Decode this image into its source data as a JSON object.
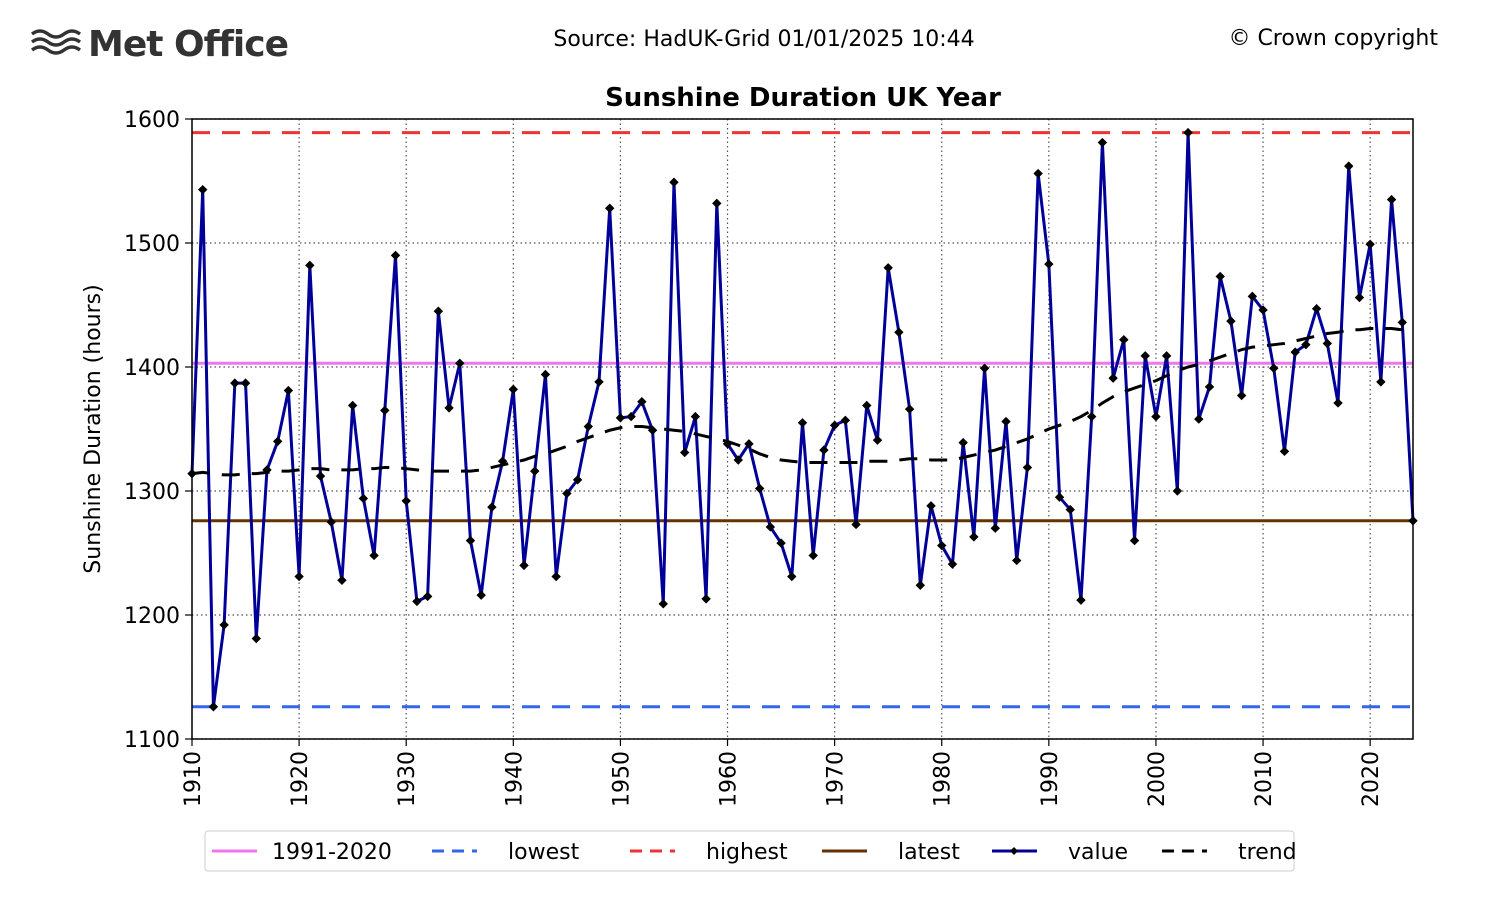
{
  "header": {
    "logo": "Met Office",
    "source": "Source: HadUK-Grid 01/01/2025 10:44",
    "copyright": "© Crown copyright"
  },
  "chart_data": {
    "type": "line",
    "title": "Sunshine Duration UK Year",
    "y_label": "Sunshine Duration (hours)",
    "xlim": [
      1910,
      2024
    ],
    "ylim": [
      1100,
      1600
    ],
    "xticks": [
      1910,
      1920,
      1930,
      1940,
      1950,
      1960,
      1970,
      1980,
      1990,
      2000,
      2010,
      2020
    ],
    "yticks": [
      1100,
      1200,
      1300,
      1400,
      1500,
      1600
    ],
    "grid": true,
    "legend": "bottom",
    "x": [
      1910,
      1911,
      1912,
      1913,
      1914,
      1915,
      1916,
      1917,
      1918,
      1919,
      1920,
      1921,
      1922,
      1923,
      1924,
      1925,
      1926,
      1927,
      1928,
      1929,
      1930,
      1931,
      1932,
      1933,
      1934,
      1935,
      1936,
      1937,
      1938,
      1939,
      1940,
      1941,
      1942,
      1943,
      1944,
      1945,
      1946,
      1947,
      1948,
      1949,
      1950,
      1951,
      1952,
      1953,
      1954,
      1955,
      1956,
      1957,
      1958,
      1959,
      1960,
      1961,
      1962,
      1963,
      1964,
      1965,
      1966,
      1967,
      1968,
      1969,
      1970,
      1971,
      1972,
      1973,
      1974,
      1975,
      1976,
      1977,
      1978,
      1979,
      1980,
      1981,
      1982,
      1983,
      1984,
      1985,
      1986,
      1987,
      1988,
      1989,
      1990,
      1991,
      1992,
      1993,
      1994,
      1995,
      1996,
      1997,
      1998,
      1999,
      2000,
      2001,
      2002,
      2003,
      2004,
      2005,
      2006,
      2007,
      2008,
      2009,
      2010,
      2011,
      2012,
      2013,
      2014,
      2015,
      2016,
      2017,
      2018,
      2019,
      2020,
      2021,
      2022,
      2023,
      2024
    ],
    "series": [
      {
        "name": "1991-2020",
        "color": "#ee77ee",
        "value": 1403,
        "dash": "solid"
      },
      {
        "name": "lowest",
        "color": "#3366ee",
        "value": 1126,
        "dash": "dashed"
      },
      {
        "name": "highest",
        "color": "#ee3333",
        "value": 1589,
        "dash": "dashed"
      },
      {
        "name": "latest",
        "color": "#663300",
        "value": 1276,
        "dash": "solid"
      },
      {
        "name": "value",
        "color": "#000099",
        "dash": "solid",
        "marker": "diamond",
        "values": [
          1314,
          1543,
          1126,
          1192,
          1387,
          1387,
          1181,
          1317,
          1340,
          1381,
          1231,
          1482,
          1312,
          1275,
          1228,
          1369,
          1294,
          1248,
          1365,
          1490,
          1292,
          1211,
          1215,
          1445,
          1367,
          1403,
          1260,
          1216,
          1287,
          1324,
          1382,
          1240,
          1316,
          1394,
          1231,
          1298,
          1309,
          1352,
          1388,
          1528,
          1359,
          1360,
          1372,
          1349,
          1209,
          1549,
          1331,
          1360,
          1213,
          1532,
          1338,
          1325,
          1338,
          1302,
          1271,
          1258,
          1231,
          1355,
          1248,
          1333,
          1353,
          1357,
          1273,
          1369,
          1341,
          1480,
          1428,
          1366,
          1224,
          1288,
          1256,
          1241,
          1339,
          1263,
          1399,
          1270,
          1356,
          1244,
          1319,
          1556,
          1483,
          1295,
          1285,
          1212,
          1360,
          1581,
          1391,
          1422,
          1260,
          1409,
          1360,
          1409,
          1300,
          1589,
          1358,
          1384,
          1473,
          1437,
          1377,
          1457,
          1446,
          1399,
          1332,
          1412,
          1418,
          1447,
          1419,
          1371,
          1562,
          1456,
          1499,
          1388,
          1535,
          1436,
          1276
        ]
      },
      {
        "name": "trend",
        "color": "#000000",
        "dash": "dashed",
        "values": [
          1314,
          1315,
          1314,
          1313,
          1313,
          1314,
          1314,
          1315,
          1316,
          1316,
          1317,
          1318,
          1318,
          1317,
          1317,
          1317,
          1318,
          1318,
          1319,
          1319,
          1318,
          1317,
          1316,
          1316,
          1316,
          1316,
          1316,
          1317,
          1319,
          1321,
          1323,
          1325,
          1328,
          1330,
          1333,
          1336,
          1340,
          1343,
          1346,
          1349,
          1351,
          1352,
          1352,
          1351,
          1350,
          1349,
          1348,
          1346,
          1344,
          1342,
          1340,
          1337,
          1334,
          1330,
          1327,
          1325,
          1324,
          1323,
          1323,
          1323,
          1323,
          1323,
          1323,
          1324,
          1324,
          1324,
          1325,
          1326,
          1326,
          1325,
          1325,
          1325,
          1327,
          1329,
          1331,
          1333,
          1336,
          1339,
          1342,
          1346,
          1350,
          1353,
          1356,
          1360,
          1365,
          1371,
          1376,
          1380,
          1383,
          1386,
          1389,
          1393,
          1397,
          1400,
          1402,
          1405,
          1408,
          1411,
          1414,
          1416,
          1417,
          1418,
          1419,
          1421,
          1423,
          1425,
          1427,
          1428,
          1430,
          1430,
          1431,
          1431,
          1431,
          1430,
          1428
        ]
      }
    ]
  }
}
